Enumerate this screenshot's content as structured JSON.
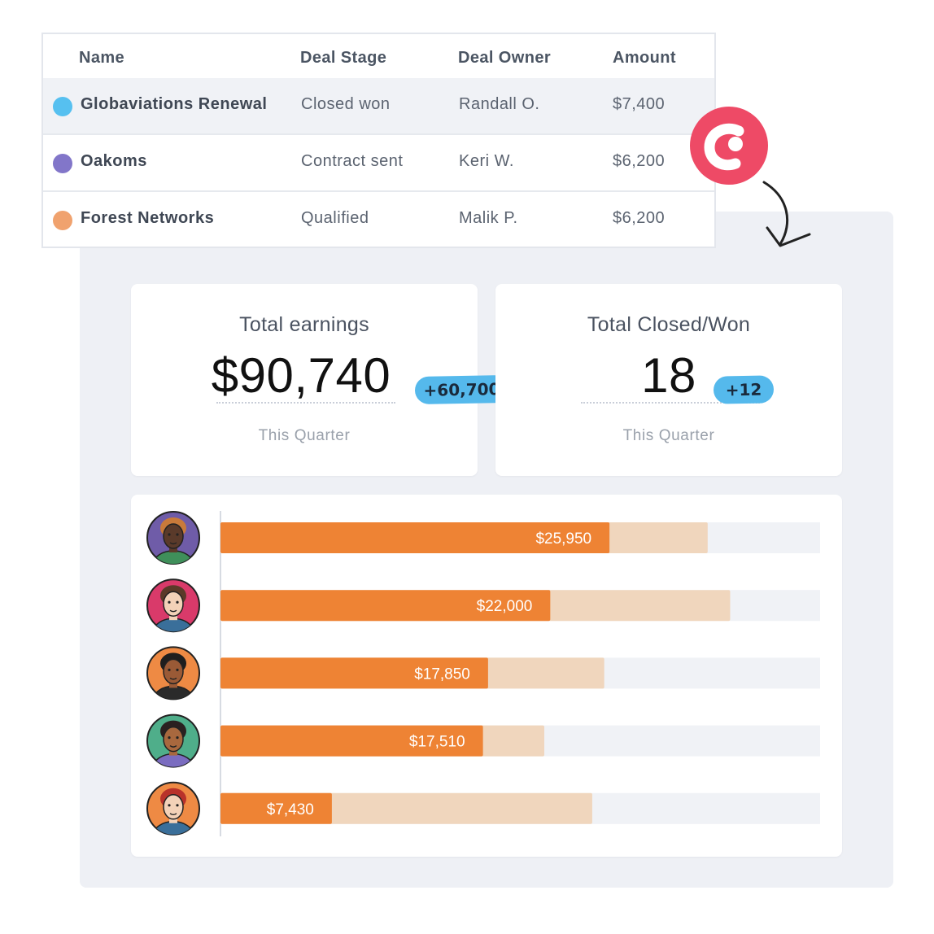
{
  "table": {
    "headers": {
      "name": "Name",
      "stage": "Deal Stage",
      "owner": "Deal Owner",
      "amount": "Amount"
    },
    "rows": [
      {
        "name": "Globaviations Renewal",
        "stage": "Closed won",
        "owner": "Randall O.",
        "amount": "$7,400",
        "dot_color": "#56c0f0"
      },
      {
        "name": "Oakoms",
        "stage": "Contract sent",
        "owner": "Keri W.",
        "amount": "$6,200",
        "dot_color": "#8276c9"
      },
      {
        "name": "Forest Networks",
        "stage": "Qualified",
        "owner": "Malik P.",
        "amount": "$6,200",
        "dot_color": "#f0a26e"
      }
    ]
  },
  "logo": {
    "icon": "brand-logo-icon",
    "color": "#ee4a66"
  },
  "metrics": [
    {
      "title": "Total earnings",
      "value": "$90,740",
      "badge": "+60,700",
      "caption": "This Quarter"
    },
    {
      "title": "Total Closed/Won",
      "value": "18",
      "badge": "+12",
      "caption": "This Quarter"
    }
  ],
  "colors": {
    "bar": "#ee8334",
    "target": "#f0d6bd",
    "track": "#f0f2f6",
    "badge": "#55b9ec"
  },
  "chart_data": {
    "type": "bar",
    "orientation": "horizontal",
    "categories": [
      "person-1",
      "person-2",
      "person-3",
      "person-4",
      "person-5"
    ],
    "series": [
      {
        "values": [
          25950,
          22000,
          17850,
          17510,
          7430
        ]
      },
      {
        "values": [
          32500,
          34000,
          25600,
          21600,
          24800
        ]
      }
    ],
    "value_labels": [
      "$25,950",
      "$22,000",
      "$17,850",
      "$17,510",
      "$7,430"
    ],
    "xlim": [
      0,
      40000
    ],
    "avatars": [
      {
        "icon": "avatar-person-1-icon",
        "bg": "#6f5ca8",
        "skin": "#5a3a2a",
        "hair": "#c97a3a",
        "shirt": "#3f8f5a"
      },
      {
        "icon": "avatar-person-2-icon",
        "bg": "#d93a6a",
        "skin": "#f3d2b8",
        "hair": "#5a3a28",
        "shirt": "#3a6f9a"
      },
      {
        "icon": "avatar-person-3-icon",
        "bg": "#ee8a44",
        "skin": "#9a5a36",
        "hair": "#1e1e1e",
        "shirt": "#2a2a2a"
      },
      {
        "icon": "avatar-person-4-icon",
        "bg": "#4fae8a",
        "skin": "#a8683e",
        "hair": "#2a2020",
        "shirt": "#7a6cc0"
      },
      {
        "icon": "avatar-person-5-icon",
        "bg": "#ee8a44",
        "skin": "#f3d2b8",
        "hair": "#b8322a",
        "shirt": "#3a6f9a"
      }
    ]
  }
}
